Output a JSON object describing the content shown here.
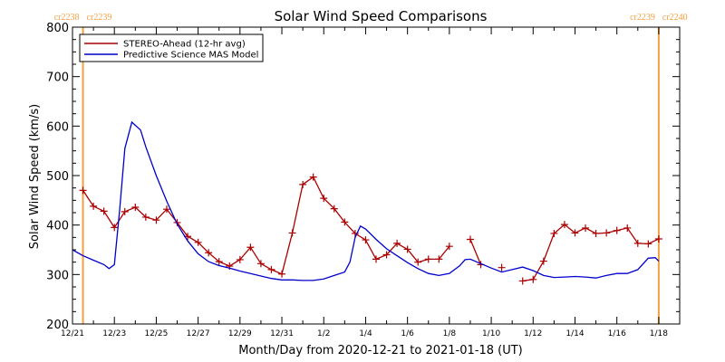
{
  "chart_data": {
    "type": "line",
    "title": "Solar Wind Speed Comparisons",
    "xlabel": "Month/Day from 2020-12-21 to 2021-01-18 (UT)",
    "ylabel": "Solar Wind Speed (km/s)",
    "x_range": [
      "2020-12-21",
      "2021-01-18"
    ],
    "ylim": [
      200,
      800
    ],
    "yticks": [
      200,
      300,
      400,
      500,
      600,
      700,
      800
    ],
    "xticks": [
      {
        "label": "12/21",
        "date": "2020-12-21"
      },
      {
        "label": "12/23",
        "date": "2020-12-23"
      },
      {
        "label": "12/25",
        "date": "2020-12-25"
      },
      {
        "label": "12/27",
        "date": "2020-12-27"
      },
      {
        "label": "12/29",
        "date": "2020-12-29"
      },
      {
        "label": "12/31",
        "date": "2020-12-31"
      },
      {
        "label": "1/2",
        "date": "2021-01-02"
      },
      {
        "label": "1/4",
        "date": "2021-01-04"
      },
      {
        "label": "1/6",
        "date": "2021-01-06"
      },
      {
        "label": "1/8",
        "date": "2021-01-08"
      },
      {
        "label": "1/10",
        "date": "2021-01-10"
      },
      {
        "label": "1/12",
        "date": "2021-01-12"
      },
      {
        "label": "1/14",
        "date": "2021-01-14"
      },
      {
        "label": "1/16",
        "date": "2021-01-16"
      },
      {
        "label": "1/18",
        "date": "2021-01-18"
      }
    ],
    "grid": false,
    "legend_position": "top-left",
    "series": [
      {
        "name": "STEREO-Ahead (12-hr avg)",
        "color": "#aa0000",
        "marker": "plus",
        "segments": [
          [
            [
              "2020-12-21 12:00",
              470
            ],
            [
              "2020-12-22 00:00",
              438
            ],
            [
              "2020-12-22 12:00",
              428
            ],
            [
              "2020-12-23 00:00",
              395
            ],
            [
              "2020-12-23 12:00",
              427
            ],
            [
              "2020-12-24 00:00",
              436
            ],
            [
              "2020-12-24 12:00",
              416
            ],
            [
              "2020-12-25 00:00",
              410
            ],
            [
              "2020-12-25 12:00",
              432
            ],
            [
              "2020-12-26 00:00",
              405
            ],
            [
              "2020-12-26 12:00",
              377
            ],
            [
              "2020-12-27 00:00",
              365
            ],
            [
              "2020-12-27 12:00",
              344
            ],
            [
              "2020-12-28 00:00",
              326
            ],
            [
              "2020-12-28 12:00",
              317
            ],
            [
              "2020-12-29 00:00",
              330
            ],
            [
              "2020-12-29 12:00",
              355
            ],
            [
              "2020-12-30 00:00",
              322
            ],
            [
              "2020-12-30 12:00",
              310
            ],
            [
              "2020-12-31 00:00",
              301
            ],
            [
              "2020-12-31 12:00",
              384
            ],
            [
              "2021-01-01 00:00",
              482
            ],
            [
              "2021-01-01 12:00",
              497
            ],
            [
              "2021-01-02 00:00",
              454
            ],
            [
              "2021-01-02 12:00",
              433
            ],
            [
              "2021-01-03 00:00",
              406
            ],
            [
              "2021-01-03 12:00",
              383
            ],
            [
              "2021-01-04 00:00",
              370
            ],
            [
              "2021-01-04 12:00",
              331
            ],
            [
              "2021-01-05 00:00",
              340
            ],
            [
              "2021-01-05 12:00",
              363
            ],
            [
              "2021-01-06 00:00",
              351
            ],
            [
              "2021-01-06 12:00",
              325
            ],
            [
              "2021-01-07 00:00",
              331
            ],
            [
              "2021-01-07 12:00",
              331
            ],
            [
              "2021-01-08 00:00",
              357
            ]
          ],
          [
            [
              "2021-01-09 00:00",
              371
            ],
            [
              "2021-01-09 12:00",
              320
            ]
          ],
          [
            [
              "2021-01-10 12:00",
              314
            ]
          ],
          [
            [
              "2021-01-11 12:00",
              287
            ],
            [
              "2021-01-12 00:00",
              290
            ],
            [
              "2021-01-12 12:00",
              327
            ],
            [
              "2021-01-13 00:00",
              383
            ],
            [
              "2021-01-13 12:00",
              401
            ],
            [
              "2021-01-14 00:00",
              384
            ],
            [
              "2021-01-14 12:00",
              394
            ],
            [
              "2021-01-15 00:00",
              383
            ],
            [
              "2021-01-15 12:00",
              384
            ],
            [
              "2021-01-16 00:00",
              389
            ],
            [
              "2021-01-16 12:00",
              394
            ],
            [
              "2021-01-17 00:00",
              363
            ],
            [
              "2021-01-17 12:00",
              362
            ],
            [
              "2021-01-18 00:00",
              372
            ]
          ]
        ]
      },
      {
        "name": "Predictive Science MAS Model",
        "color": "#0000cc",
        "marker": "none",
        "segments": [
          [
            [
              "2020-12-21 00:00",
              350
            ],
            [
              "2020-12-21 12:00",
              338
            ],
            [
              "2020-12-22 00:00",
              329
            ],
            [
              "2020-12-22 12:00",
              320
            ],
            [
              "2020-12-22 18:00",
              312
            ],
            [
              "2020-12-23 00:00",
              320
            ],
            [
              "2020-12-23 06:00",
              430
            ],
            [
              "2020-12-23 12:00",
              555
            ],
            [
              "2020-12-23 20:00",
              608
            ],
            [
              "2020-12-24 06:00",
              592
            ],
            [
              "2020-12-24 12:00",
              558
            ],
            [
              "2020-12-25 00:00",
              500
            ],
            [
              "2020-12-25 12:00",
              448
            ],
            [
              "2020-12-26 00:00",
              402
            ],
            [
              "2020-12-26 12:00",
              368
            ],
            [
              "2020-12-27 00:00",
              342
            ],
            [
              "2020-12-27 12:00",
              326
            ],
            [
              "2020-12-28 00:00",
              318
            ],
            [
              "2020-12-28 12:00",
              313
            ],
            [
              "2020-12-29 00:00",
              307
            ],
            [
              "2020-12-29 12:00",
              302
            ],
            [
              "2020-12-30 00:00",
              297
            ],
            [
              "2020-12-30 12:00",
              292
            ],
            [
              "2020-12-31 00:00",
              289
            ],
            [
              "2020-12-31 12:00",
              289
            ],
            [
              "2021-01-01 00:00",
              288
            ],
            [
              "2021-01-01 12:00",
              288
            ],
            [
              "2021-01-02 00:00",
              291
            ],
            [
              "2021-01-02 12:00",
              298
            ],
            [
              "2021-01-03 00:00",
              305
            ],
            [
              "2021-01-03 06:00",
              325
            ],
            [
              "2021-01-03 12:00",
              375
            ],
            [
              "2021-01-03 18:00",
              398
            ],
            [
              "2021-01-04 00:00",
              392
            ],
            [
              "2021-01-04 12:00",
              371
            ],
            [
              "2021-01-05 00:00",
              352
            ],
            [
              "2021-01-05 12:00",
              338
            ],
            [
              "2021-01-06 00:00",
              324
            ],
            [
              "2021-01-06 12:00",
              312
            ],
            [
              "2021-01-07 00:00",
              302
            ],
            [
              "2021-01-07 12:00",
              298
            ],
            [
              "2021-01-08 00:00",
              302
            ],
            [
              "2021-01-08 12:00",
              318
            ],
            [
              "2021-01-08 18:00",
              330
            ],
            [
              "2021-01-09 00:00",
              331
            ],
            [
              "2021-01-09 12:00",
              322
            ],
            [
              "2021-01-10 00:00",
              313
            ],
            [
              "2021-01-10 12:00",
              305
            ],
            [
              "2021-01-11 00:00",
              310
            ],
            [
              "2021-01-11 12:00",
              315
            ],
            [
              "2021-01-12 00:00",
              308
            ],
            [
              "2021-01-12 12:00",
              298
            ],
            [
              "2021-01-13 00:00",
              294
            ],
            [
              "2021-01-13 12:00",
              295
            ],
            [
              "2021-01-14 00:00",
              296
            ],
            [
              "2021-01-14 12:00",
              295
            ],
            [
              "2021-01-15 00:00",
              293
            ],
            [
              "2021-01-15 12:00",
              298
            ],
            [
              "2021-01-16 00:00",
              302
            ],
            [
              "2021-01-16 12:00",
              302
            ],
            [
              "2021-01-17 00:00",
              310
            ],
            [
              "2021-01-17 12:00",
              333
            ],
            [
              "2021-01-17 20:00",
              334
            ],
            [
              "2021-01-18 00:00",
              327
            ]
          ]
        ]
      }
    ],
    "boundaries": [
      {
        "date": "2020-12-21 12:00",
        "left_label": "cr2238",
        "right_label": "cr2239",
        "color": "#f5a040"
      },
      {
        "date": "2021-01-18 00:00",
        "left_label": "cr2239",
        "right_label": "cr2240",
        "color": "#f5a040"
      }
    ]
  }
}
